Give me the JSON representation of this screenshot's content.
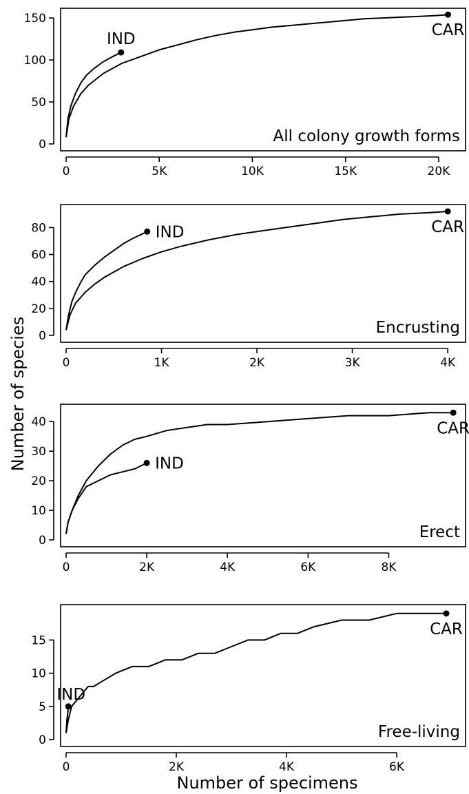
{
  "figure": {
    "ylabel": "Number of species",
    "xlabel": "Number of specimens"
  },
  "chart_data": [
    {
      "type": "line",
      "panel_label": "All colony growth forms",
      "xlim": [
        0,
        21000
      ],
      "ylim": [
        0,
        155
      ],
      "x_ticks": [
        0,
        5000,
        10000,
        15000,
        20000
      ],
      "x_tick_labels": [
        "0",
        "5K",
        "10K",
        "15K",
        "20K"
      ],
      "y_ticks": [
        0,
        50,
        100,
        150
      ],
      "y_tick_labels": [
        "0",
        "50",
        "100",
        "150"
      ],
      "series": [
        {
          "name": "IND",
          "x": [
            0,
            100,
            250,
            500,
            800,
            1100,
            1500,
            2000,
            2500,
            2950
          ],
          "y": [
            8,
            30,
            45,
            60,
            73,
            82,
            90,
            98,
            104,
            109
          ]
        },
        {
          "name": "CAR",
          "x": [
            0,
            150,
            400,
            800,
            1200,
            2000,
            3000,
            4000,
            5000,
            6000,
            7000,
            8000,
            9000,
            10000,
            11000,
            12000,
            13000,
            14000,
            15000,
            16000,
            17000,
            18000,
            19000,
            20000,
            20500
          ],
          "y": [
            8,
            30,
            45,
            60,
            70,
            84,
            96,
            104,
            112,
            118,
            124,
            129,
            133,
            136,
            139,
            141,
            143,
            145,
            147,
            149,
            150,
            151,
            152,
            153,
            154
          ]
        }
      ]
    },
    {
      "type": "line",
      "panel_label": "Encrusting",
      "xlim": [
        0,
        4100
      ],
      "ylim": [
        0,
        93
      ],
      "x_ticks": [
        0,
        1000,
        2000,
        3000,
        4000
      ],
      "x_tick_labels": [
        "0",
        "1K",
        "2K",
        "3K",
        "4K"
      ],
      "y_ticks": [
        0,
        20,
        40,
        60,
        80
      ],
      "y_tick_labels": [
        "0",
        "20",
        "40",
        "60",
        "80"
      ],
      "series": [
        {
          "name": "IND",
          "x": [
            0,
            25,
            60,
            100,
            150,
            200,
            300,
            400,
            500,
            600,
            700,
            850
          ],
          "y": [
            4,
            15,
            25,
            32,
            39,
            45,
            52,
            58,
            63,
            68,
            72,
            77
          ]
        },
        {
          "name": "CAR",
          "x": [
            0,
            40,
            100,
            200,
            300,
            400,
            500,
            600,
            800,
            1000,
            1200,
            1500,
            1800,
            2000,
            2300,
            2600,
            2900,
            3200,
            3500,
            3800,
            4000
          ],
          "y": [
            4,
            15,
            24,
            32,
            38,
            43,
            47,
            51,
            57,
            62,
            66,
            71,
            75,
            77,
            80,
            83,
            86,
            88,
            90,
            91,
            92
          ]
        }
      ]
    },
    {
      "type": "line",
      "panel_label": "Erect",
      "xlim": [
        0,
        9700
      ],
      "ylim": [
        0,
        44
      ],
      "x_ticks": [
        0,
        2000,
        4000,
        6000,
        8000
      ],
      "x_tick_labels": [
        "0",
        "2K",
        "4K",
        "6K",
        "8K"
      ],
      "y_ticks": [
        0,
        10,
        20,
        30,
        40
      ],
      "y_tick_labels": [
        "0",
        "10",
        "20",
        "30",
        "40"
      ],
      "series": [
        {
          "name": "IND",
          "x": [
            0,
            50,
            150,
            300,
            500,
            800,
            1100,
            1400,
            1700,
            2000
          ],
          "y": [
            2,
            6,
            10,
            14,
            18,
            20,
            22,
            23,
            24,
            26
          ]
        },
        {
          "name": "CAR",
          "x": [
            0,
            50,
            150,
            300,
            500,
            800,
            1100,
            1400,
            1700,
            2000,
            2500,
            3000,
            3500,
            4000,
            5000,
            6000,
            7000,
            8000,
            9000,
            9600
          ],
          "y": [
            2,
            6,
            10,
            15,
            20,
            25,
            29,
            32,
            34,
            35,
            37,
            38,
            39,
            39,
            40,
            41,
            42,
            42,
            43,
            43
          ]
        }
      ]
    },
    {
      "type": "line",
      "panel_label": "Free-living",
      "xlim": [
        0,
        7100
      ],
      "ylim": [
        0,
        19.5
      ],
      "x_ticks": [
        0,
        2000,
        4000,
        6000
      ],
      "x_tick_labels": [
        "0",
        "2K",
        "4K",
        "6K"
      ],
      "y_ticks": [
        0,
        5,
        10,
        15
      ],
      "y_tick_labels": [
        "0",
        "5",
        "10",
        "15"
      ],
      "series": [
        {
          "name": "IND",
          "x": [
            0,
            15,
            30,
            40
          ],
          "y": [
            1,
            3,
            4,
            5
          ]
        },
        {
          "name": "CAR",
          "x": [
            0,
            40,
            100,
            200,
            300,
            400,
            500,
            700,
            900,
            1200,
            1500,
            1800,
            2100,
            2400,
            2700,
            3000,
            3300,
            3600,
            3900,
            4200,
            4500,
            5000,
            5500,
            6000,
            6900
          ],
          "y": [
            1,
            3,
            5,
            6,
            7,
            8,
            8,
            9,
            10,
            11,
            11,
            12,
            12,
            13,
            13,
            14,
            15,
            15,
            16,
            16,
            17,
            18,
            18,
            19,
            19
          ]
        }
      ]
    }
  ]
}
